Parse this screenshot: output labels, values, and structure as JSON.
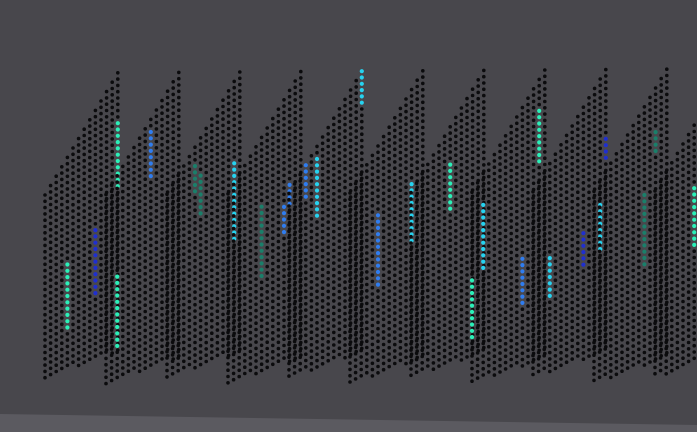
{
  "scene": {
    "background_color": "#48474c",
    "floor_color": "#5b5a60",
    "base_dot_color": "#0b0b0d",
    "accent_colors": [
      "#1f2fd0",
      "#2f7df0",
      "#26d3f0",
      "#2bf0b8",
      "#1a7f6a"
    ]
  },
  "dot_grid": {
    "panel_count": 11,
    "panel_direction": "diagonal",
    "highlight_style": "vertical color streaks over black dots"
  }
}
